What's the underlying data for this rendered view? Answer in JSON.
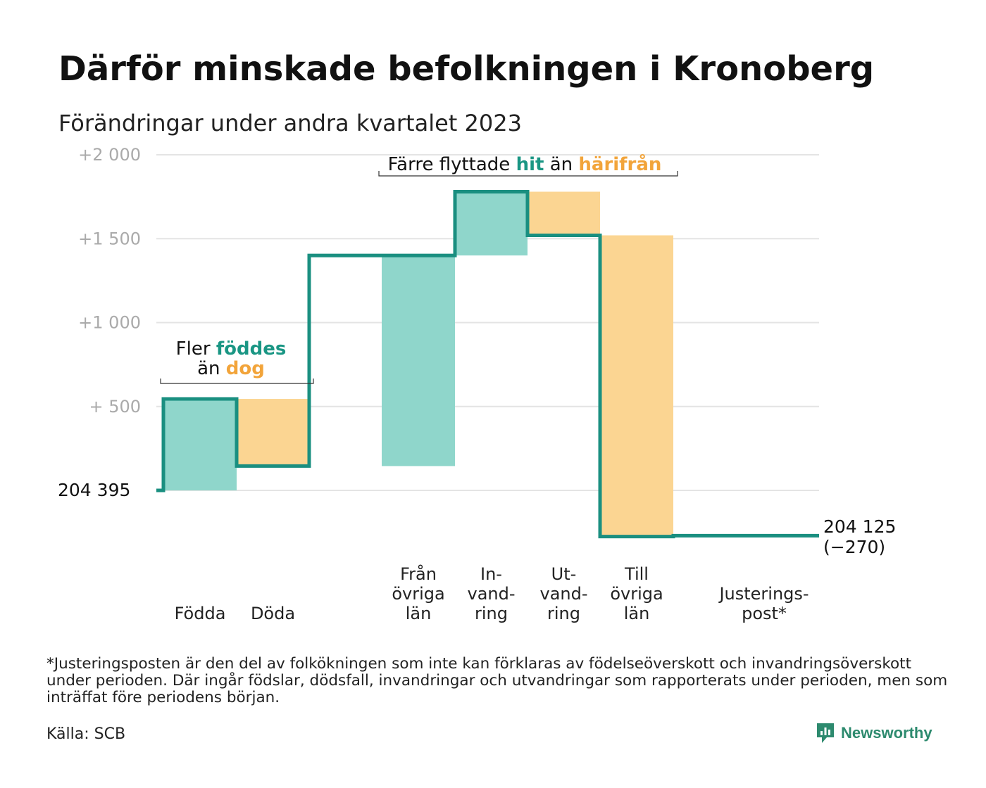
{
  "title": "Därför minskade befolkningen i Kronoberg",
  "subtitle": "Förändringar under andra kvartalet 2023",
  "colors": {
    "line": "#1a8f80",
    "inflow": "#8fd6cb",
    "outflow": "#fbd592",
    "grid": "#e4e4e4",
    "tick": "#aaaaaa",
    "accent_in": "#1a9684",
    "accent_out": "#f2a43a"
  },
  "annotations": {
    "births": {
      "prefix": "Fler",
      "in_word": "föddes",
      "mid": "än",
      "out_word": "dog"
    },
    "migration": {
      "prefix": "Färre flyttade",
      "in_word": "hit",
      "mid": "än",
      "out_word": "härifrån"
    }
  },
  "chart_data": {
    "type": "waterfall",
    "start": {
      "label": "204 395",
      "value": 204395
    },
    "end": {
      "label": "204 125",
      "change_label": "(−270)",
      "value": 204125
    },
    "yaxis": {
      "ticks": [
        "+2 000",
        "+1 500",
        "+1 000",
        "+ 500"
      ],
      "range_relative": [
        -270,
        2000
      ]
    },
    "steps": [
      {
        "name": "Födda",
        "lines": [
          "Födda"
        ],
        "delta": 545,
        "kind": "inflow"
      },
      {
        "name": "Döda",
        "lines": [
          "Döda"
        ],
        "delta": -400,
        "kind": "outflow"
      },
      {
        "name": "Från övriga län",
        "lines": [
          "Från",
          "övriga",
          "län"
        ],
        "delta": 1255,
        "kind": "inflow"
      },
      {
        "name": "Invandring",
        "lines": [
          "In-",
          "vand-",
          "ring"
        ],
        "delta": 380,
        "kind": "inflow"
      },
      {
        "name": "Utvandring",
        "lines": [
          "Ut-",
          "vand-",
          "ring"
        ],
        "delta": -260,
        "kind": "outflow"
      },
      {
        "name": "Till övriga län",
        "lines": [
          "Till",
          "övriga",
          "län"
        ],
        "delta": -1795,
        "kind": "outflow"
      },
      {
        "name": "Justeringspost*",
        "lines": [
          "Justerings-",
          "post*"
        ],
        "delta": 5,
        "kind": "adjustment"
      }
    ]
  },
  "footnote": "*Justeringsposten är den del av folkökningen som inte kan förklaras av födelseöverskott och invandringsöverskott under perioden. Där ingår födslar, dödsfall, invandringar och utvandringar som rapporterats under perioden, men som inträffat före periodens början.",
  "source": "Källa: SCB",
  "brand": {
    "name": "Newsworthy",
    "icon": "newsworthy-logo-icon"
  }
}
